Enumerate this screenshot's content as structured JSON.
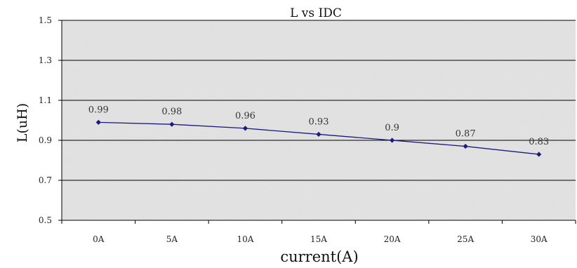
{
  "chart_data": {
    "type": "line",
    "title": "L vs IDC",
    "xlabel": "current(A)",
    "ylabel": "L(uH)",
    "categories": [
      "0A",
      "5A",
      "10A",
      "15A",
      "20A",
      "25A",
      "30A"
    ],
    "series": [
      {
        "values": [
          0.99,
          0.98,
          0.96,
          0.93,
          0.9,
          0.87,
          0.83
        ],
        "color": "#1a1a80"
      }
    ],
    "ylim": [
      0.5,
      1.5
    ],
    "yticks": [
      "0.5",
      "0.7",
      "0.9",
      "1.1",
      "1.3",
      "1.5"
    ],
    "ytick_values": [
      0.5,
      0.7,
      0.9,
      1.1,
      1.3,
      1.5
    ],
    "data_labels": [
      "0.99",
      "0.98",
      "0.96",
      "0.93",
      "0.9",
      "0.87",
      "0.83"
    ],
    "grid": true,
    "plot_background": "#e6e6e6",
    "gridline_color": "#000000"
  }
}
